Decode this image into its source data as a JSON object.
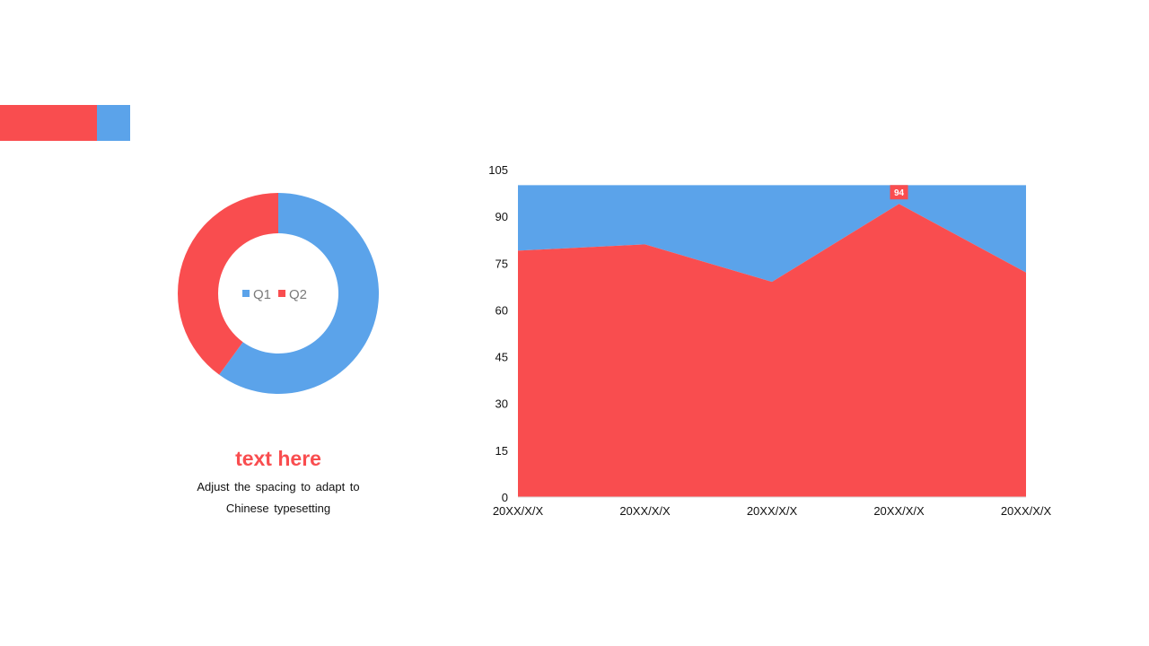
{
  "caption": {
    "title": "text here",
    "line1": "Adjust the spacing to adapt to",
    "line2": "Chinese  typesetting"
  },
  "colors": {
    "red": "#f94d4f",
    "blue": "#5ba3ea"
  },
  "chart_data": [
    {
      "type": "pie",
      "variant": "donut",
      "labels": [
        "Q1",
        "Q2"
      ],
      "values": [
        60,
        40
      ],
      "legend": "center",
      "colors": [
        "#5ba3ea",
        "#f94d4f"
      ]
    },
    {
      "type": "area",
      "stacked": true,
      "categories": [
        "20XX/X/X",
        "20XX/X/X",
        "20XX/X/X",
        "20XX/X/X",
        "20XX/X/X"
      ],
      "series": [
        {
          "values": [
            79,
            81,
            69,
            94,
            72
          ],
          "color": "#f94d4f"
        },
        {
          "values": [
            21,
            19,
            31,
            6,
            28
          ],
          "color": "#5ba3ea"
        }
      ],
      "data_labels": [
        {
          "index": 3,
          "text": "94"
        }
      ],
      "yticks": [
        0,
        15,
        30,
        45,
        60,
        75,
        90,
        105
      ],
      "ylim": [
        0,
        105
      ],
      "grid": false,
      "legend": "none"
    }
  ]
}
